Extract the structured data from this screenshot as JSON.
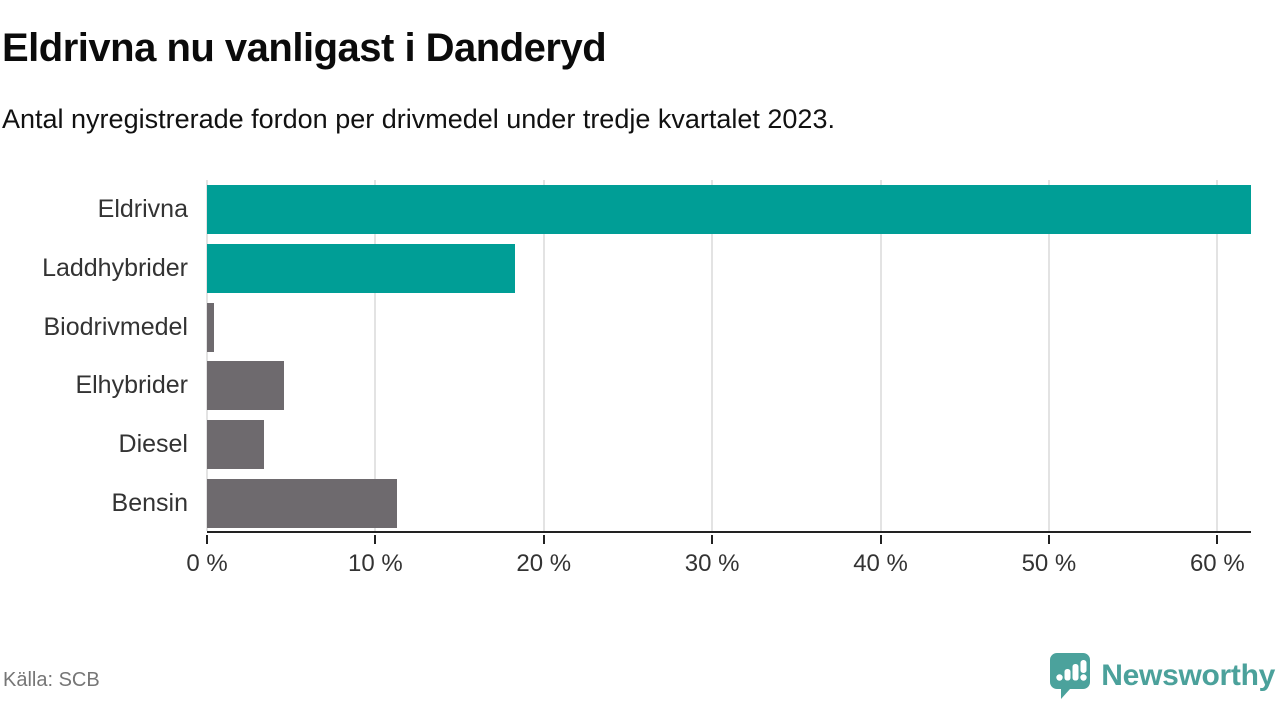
{
  "chart_data": {
    "type": "bar",
    "orientation": "horizontal",
    "title": "Eldrivna nu vanligast i Danderyd",
    "subtitle": "Antal nyregistrerade fordon per drivmedel under tredje kvartalet 2023.",
    "categories": [
      "Eldrivna",
      "Laddhybrider",
      "Biodrivmedel",
      "Elhybrider",
      "Diesel",
      "Bensin"
    ],
    "values": [
      62,
      18.3,
      0.4,
      4.6,
      3.4,
      11.3
    ],
    "unit": "%",
    "xlim": [
      0,
      62
    ],
    "x_ticks": [
      0,
      10,
      20,
      30,
      40,
      50,
      60
    ],
    "x_tick_labels": [
      "0 %",
      "10 %",
      "20 %",
      "30 %",
      "40 %",
      "50 %",
      "60 %"
    ],
    "grid": "vertical-gridlines",
    "legend": "none",
    "bar_colors": [
      "#009e96",
      "#009e96",
      "#6e6a6e",
      "#6e6a6e",
      "#6e6a6e",
      "#6e6a6e"
    ]
  },
  "footer": {
    "source": "Källa: SCB",
    "brand": "Newsworthy"
  },
  "colors": {
    "accent_teal": "#009e96",
    "neutral_gray": "#6e6a6e",
    "brand_teal": "#4ba19b",
    "gridline": "#e3e3e3",
    "axis": "#222222"
  }
}
